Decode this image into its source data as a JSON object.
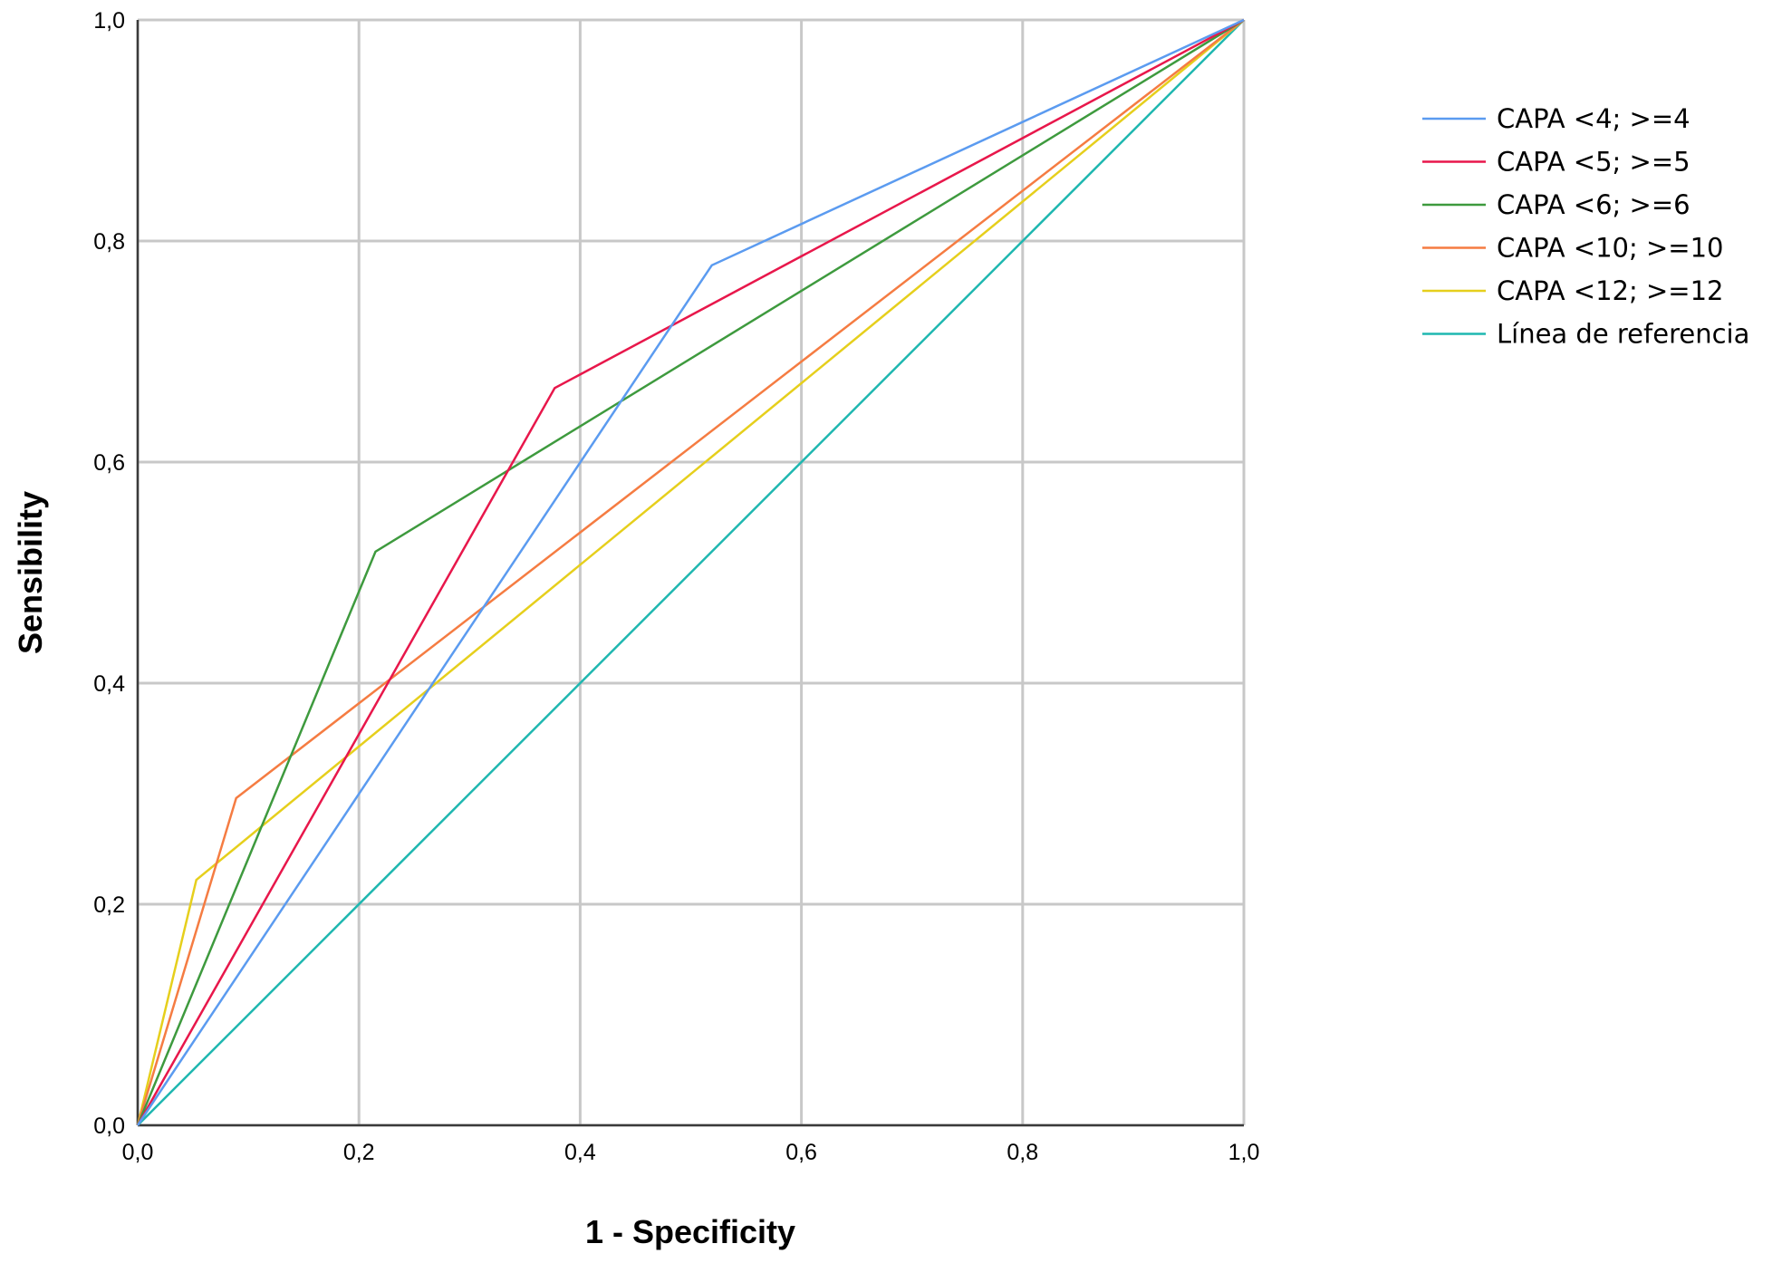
{
  "chart_data": {
    "type": "line",
    "title": "",
    "xlabel": "1 - Specificity",
    "ylabel": "Sensibility",
    "xlim": [
      0,
      1
    ],
    "ylim": [
      0,
      1
    ],
    "grid": true,
    "legend_position": "right",
    "x_ticks": [
      0,
      0.2,
      0.4,
      0.6,
      0.8,
      1.0
    ],
    "y_ticks": [
      0,
      0.2,
      0.4,
      0.6,
      0.8,
      1.0
    ],
    "x_tick_labels": [
      "0,0",
      "0,2",
      "0,4",
      "0,6",
      "0,8",
      "1,0"
    ],
    "y_tick_labels": [
      "0,0",
      "0,2",
      "0,4",
      "0,6",
      "0,8",
      "1,0"
    ],
    "series": [
      {
        "name": "CAPA <4; >=4",
        "color": "#5b9bf0",
        "points": [
          [
            0,
            0
          ],
          [
            0.519,
            0.778
          ],
          [
            1,
            1
          ]
        ]
      },
      {
        "name": "CAPA <5; >=5",
        "color": "#e8174b",
        "points": [
          [
            0,
            0
          ],
          [
            0.377,
            0.667
          ],
          [
            1,
            1
          ]
        ]
      },
      {
        "name": "CAPA <6; >=6",
        "color": "#3e9a3e",
        "points": [
          [
            0,
            0
          ],
          [
            0.215,
            0.519
          ],
          [
            1,
            1
          ]
        ]
      },
      {
        "name": "CAPA <10; >=10",
        "color": "#f57c42",
        "points": [
          [
            0,
            0
          ],
          [
            0.089,
            0.296
          ],
          [
            1,
            1
          ]
        ]
      },
      {
        "name": "CAPA <12; >=12",
        "color": "#e6cf1c",
        "points": [
          [
            0,
            0
          ],
          [
            0.053,
            0.222
          ],
          [
            1,
            1
          ]
        ]
      },
      {
        "name": "Línea de referencia",
        "color": "#1fb7b0",
        "points": [
          [
            0,
            0
          ],
          [
            1,
            1
          ]
        ]
      }
    ]
  }
}
